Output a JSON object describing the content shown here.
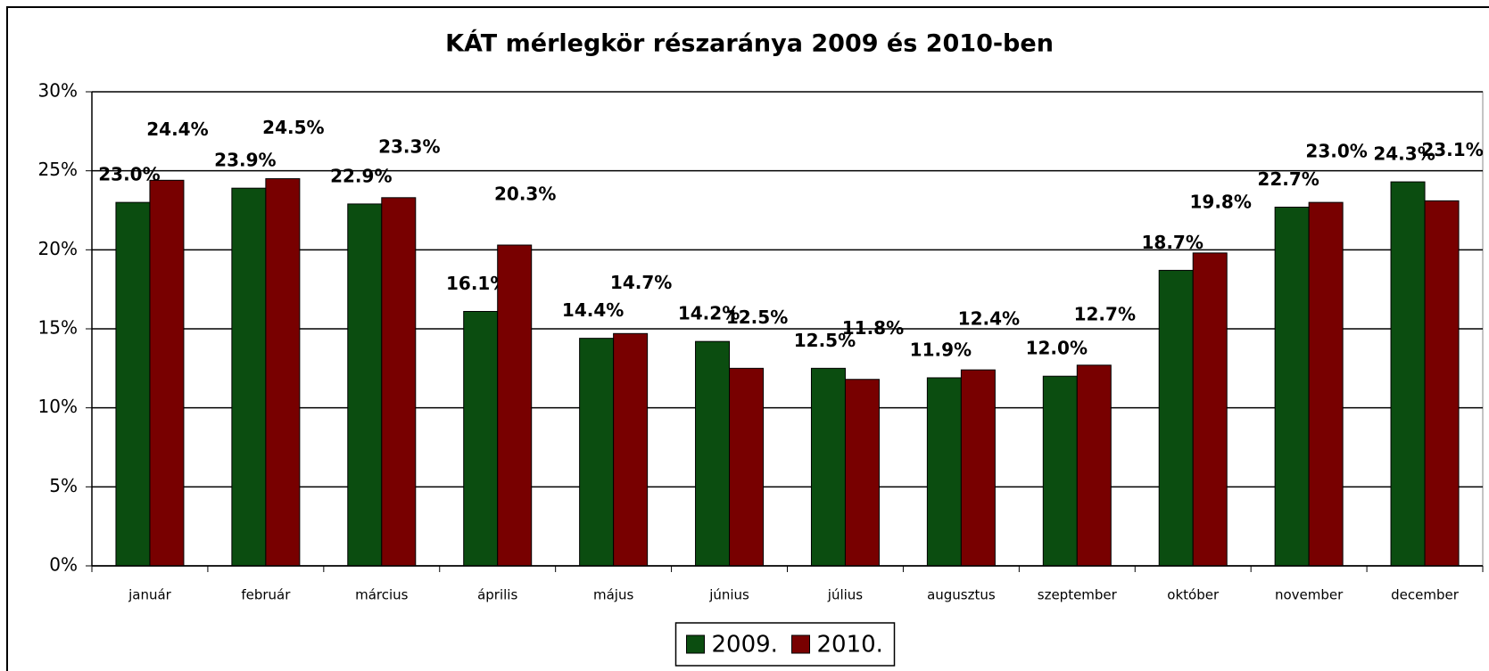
{
  "chart_data": {
    "type": "bar",
    "title": "KÁT mérlegkör részaránya 2009 és 2010-ben",
    "categories": [
      "január",
      "február",
      "március",
      "április",
      "május",
      "június",
      "július",
      "augusztus",
      "szeptember",
      "október",
      "november",
      "december"
    ],
    "series": [
      {
        "name": "2009.",
        "color": "#0b4d10",
        "values": [
          23.0,
          23.9,
          22.9,
          16.1,
          14.4,
          14.2,
          12.5,
          11.9,
          12.0,
          18.7,
          22.7,
          24.3
        ],
        "value_labels": [
          "23.0%",
          "23.9%",
          "22.9%",
          "16.1%",
          "14.4%",
          "14.2%",
          "12.5%",
          "11.9%",
          "12.0%",
          "18.7%",
          "22.7%",
          "24.3%"
        ]
      },
      {
        "name": "2010.",
        "color": "#780000",
        "values": [
          24.4,
          24.5,
          23.3,
          20.3,
          14.7,
          12.5,
          11.8,
          12.4,
          12.7,
          19.8,
          23.0,
          23.1
        ],
        "value_labels": [
          "24.4%",
          "24.5%",
          "23.3%",
          "20.3%",
          "14.7%",
          "12.5%",
          "11.8%",
          "12.4%",
          "12.7%",
          "19.8%",
          "23.0%",
          "23.1%"
        ]
      }
    ],
    "ylim": [
      0,
      30
    ],
    "yticks": [
      {
        "value": 0,
        "label": "0%"
      },
      {
        "value": 5,
        "label": "5%"
      },
      {
        "value": 10,
        "label": "10%"
      },
      {
        "value": 15,
        "label": "15%"
      },
      {
        "value": 20,
        "label": "20%"
      },
      {
        "value": 25,
        "label": "25%"
      },
      {
        "value": 30,
        "label": "30%"
      }
    ],
    "grid": true,
    "legend": "bottom"
  }
}
